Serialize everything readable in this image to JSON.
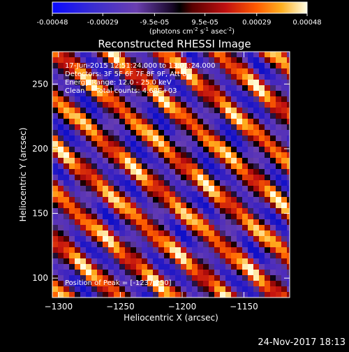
{
  "chart_data": {
    "type": "heatmap",
    "title": "Reconstructed RHESSI Image",
    "xlabel": "Heliocentric X (arcsec)",
    "ylabel": "Heliocentric Y (arcsec)",
    "xlim": [
      -1305,
      -1113
    ],
    "ylim": [
      85,
      275
    ],
    "xticks": [
      -1300,
      -1250,
      -1200,
      -1150
    ],
    "yticks": [
      100,
      150,
      200,
      250
    ],
    "colorbar": {
      "ticks": [
        "-0.00048",
        "-0.00029",
        "-9.5e-05",
        "9.5e-05",
        "0.00029",
        "0.00048"
      ],
      "range": [
        -0.00048,
        0.00048
      ],
      "colormap": "rhessi-diverging",
      "label_main": "(photons cm",
      "label_exp1": "-2",
      "label_mid1": " s",
      "label_exp2": "-1",
      "label_mid2": " asec",
      "label_exp3": "-2",
      "label_end": ")"
    },
    "annotations": [
      "17-Jun-2015 12:51:24.000 to 13:01:24.000",
      "Detectors: 3F 5F 6F 7F 8F 9F, Att 0",
      "Energy Range: 12.0 - 25.0 keV",
      "Clean     Total counts: 4.68E+03"
    ],
    "peak_label": "Position of Peak = [-1237,250]",
    "stripe_pattern": {
      "angle_deg": -40,
      "period_arcsec": 28,
      "modulation": 0.25
    },
    "colors": {
      "min": "#1010c8",
      "low": "#6a3fb0",
      "zero": "#000000",
      "mid": "#b01010",
      "high": "#ff6a00",
      "max": "#ffffe0"
    }
  },
  "footer": {
    "timestamp": "24-Nov-2017 18:13"
  }
}
